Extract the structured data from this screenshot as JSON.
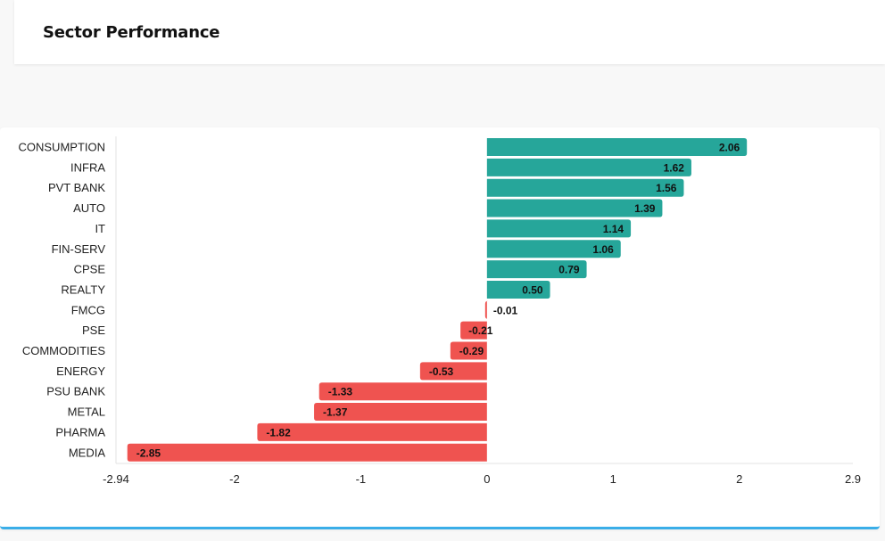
{
  "header": {
    "title": "Sector Performance"
  },
  "colors": {
    "positive": "#26a69a",
    "negative": "#ef5350",
    "accent_border": "#3aaee8"
  },
  "chart_data": {
    "type": "bar",
    "orientation": "horizontal",
    "title": "",
    "xlabel": "",
    "ylabel": "",
    "categories": [
      "CONSUMPTION",
      "INFRA",
      "PVT BANK",
      "AUTO",
      "IT",
      "FIN-SERV",
      "CPSE",
      "REALTY",
      "FMCG",
      "PSE",
      "COMMODITIES",
      "ENERGY",
      "PSU BANK",
      "METAL",
      "PHARMA",
      "MEDIA"
    ],
    "values": [
      2.06,
      1.62,
      1.56,
      1.39,
      1.14,
      1.06,
      0.79,
      0.5,
      -0.01,
      -0.21,
      -0.29,
      -0.53,
      -1.33,
      -1.37,
      -1.82,
      -2.85
    ],
    "value_labels": [
      "2.06",
      "1.62",
      "1.56",
      "1.39",
      "1.14",
      "1.06",
      "0.79",
      "0.50",
      "-0.01",
      "-0.21",
      "-0.29",
      "-0.53",
      "-1.33",
      "-1.37",
      "-1.82",
      "-2.85"
    ],
    "xlim": [
      -2.94,
      2.9
    ],
    "xticks": [
      -2.94,
      -2,
      -1,
      0,
      1,
      2,
      2.9
    ],
    "xtick_labels": [
      "-2.94",
      "-2",
      "-1",
      "0",
      "1",
      "2",
      "2.9"
    ],
    "grid": false,
    "legend": "none"
  }
}
